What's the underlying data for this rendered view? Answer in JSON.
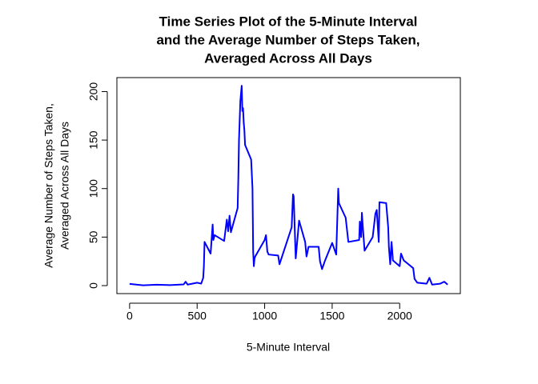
{
  "chart_data": {
    "type": "line",
    "title": [
      "Time Series Plot of the 5-Minute Interval",
      "and the Average Number of Steps Taken,",
      "Averaged Across All Days"
    ],
    "xlabel": "5-Minute Interval",
    "ylabel": [
      "Average Number of Steps Taken,",
      "Averaged Across All Days"
    ],
    "x": [
      0,
      100,
      200,
      300,
      400,
      415,
      430,
      500,
      530,
      545,
      550,
      555,
      600,
      615,
      620,
      630,
      700,
      720,
      730,
      740,
      750,
      800,
      805,
      810,
      815,
      820,
      830,
      835,
      840,
      845,
      850,
      855,
      900,
      910,
      915,
      920,
      925,
      930,
      1000,
      1010,
      1020,
      1030,
      1100,
      1110,
      1200,
      1210,
      1215,
      1230,
      1255,
      1300,
      1310,
      1325,
      1400,
      1410,
      1425,
      1445,
      1500,
      1530,
      1545,
      1550,
      1600,
      1620,
      1700,
      1705,
      1715,
      1720,
      1730,
      1740,
      1800,
      1820,
      1830,
      1845,
      1850,
      1900,
      1915,
      1920,
      1930,
      1940,
      1950,
      2000,
      2010,
      2030,
      2100,
      2110,
      2130,
      2200,
      2220,
      2240,
      2300,
      2330,
      2355
    ],
    "series": [
      {
        "color": "#0000ff",
        "values": [
          1.7,
          0.3,
          0.9,
          0.5,
          1.2,
          4,
          1,
          3,
          2,
          8,
          20,
          45,
          33,
          63,
          47,
          52,
          46,
          68,
          56,
          72,
          55,
          80,
          110,
          150,
          170,
          190,
          206,
          180,
          183,
          168,
          160,
          145,
          130,
          100,
          35,
          20,
          28,
          30,
          47,
          52,
          35,
          32,
          31,
          22,
          60,
          94,
          92,
          28,
          67,
          45,
          30,
          40,
          40,
          25,
          17,
          25,
          44,
          32,
          100,
          85,
          70,
          45,
          47,
          66,
          50,
          75,
          55,
          36,
          50,
          74,
          78,
          45,
          86,
          85,
          60,
          40,
          22,
          45,
          26,
          20,
          33,
          26,
          18,
          7,
          3,
          2,
          8,
          1,
          2,
          4,
          1
        ]
      }
    ],
    "xlim": [
      -94.2,
      2449.2
    ],
    "ylim": [
      -8.25,
      214.4
    ],
    "xticks": [
      0,
      500,
      1000,
      1500,
      2000
    ],
    "yticks": [
      0,
      50,
      100,
      150,
      200
    ],
    "grid": false
  }
}
